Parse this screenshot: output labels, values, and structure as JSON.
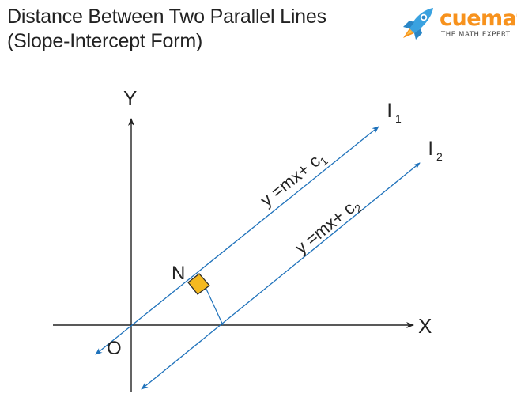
{
  "title": {
    "line1": "Distance Between Two Parallel Lines",
    "line2": "(Slope-Intercept Form)"
  },
  "logo": {
    "brand": "cuemath",
    "tagline": "THE MATH EXPERT",
    "icon": "rocket-icon",
    "colors": {
      "brand": "#f7921d",
      "rocket_blue": "#3aa2e0"
    }
  },
  "diagram": {
    "axis_y_label": "Y",
    "axis_x_label": "X",
    "origin_label": "O",
    "foot_label": "N",
    "line1": {
      "name": "l",
      "subscript": "1",
      "equation": "y =mx+ c",
      "equation_subscript": "1"
    },
    "line2": {
      "name": "l",
      "subscript": "2",
      "equation": "y =mx+ c",
      "equation_subscript": "2"
    },
    "colors": {
      "line": "#1f72bb",
      "axis": "#222222",
      "right_angle_fill": "#f5b91f"
    }
  }
}
